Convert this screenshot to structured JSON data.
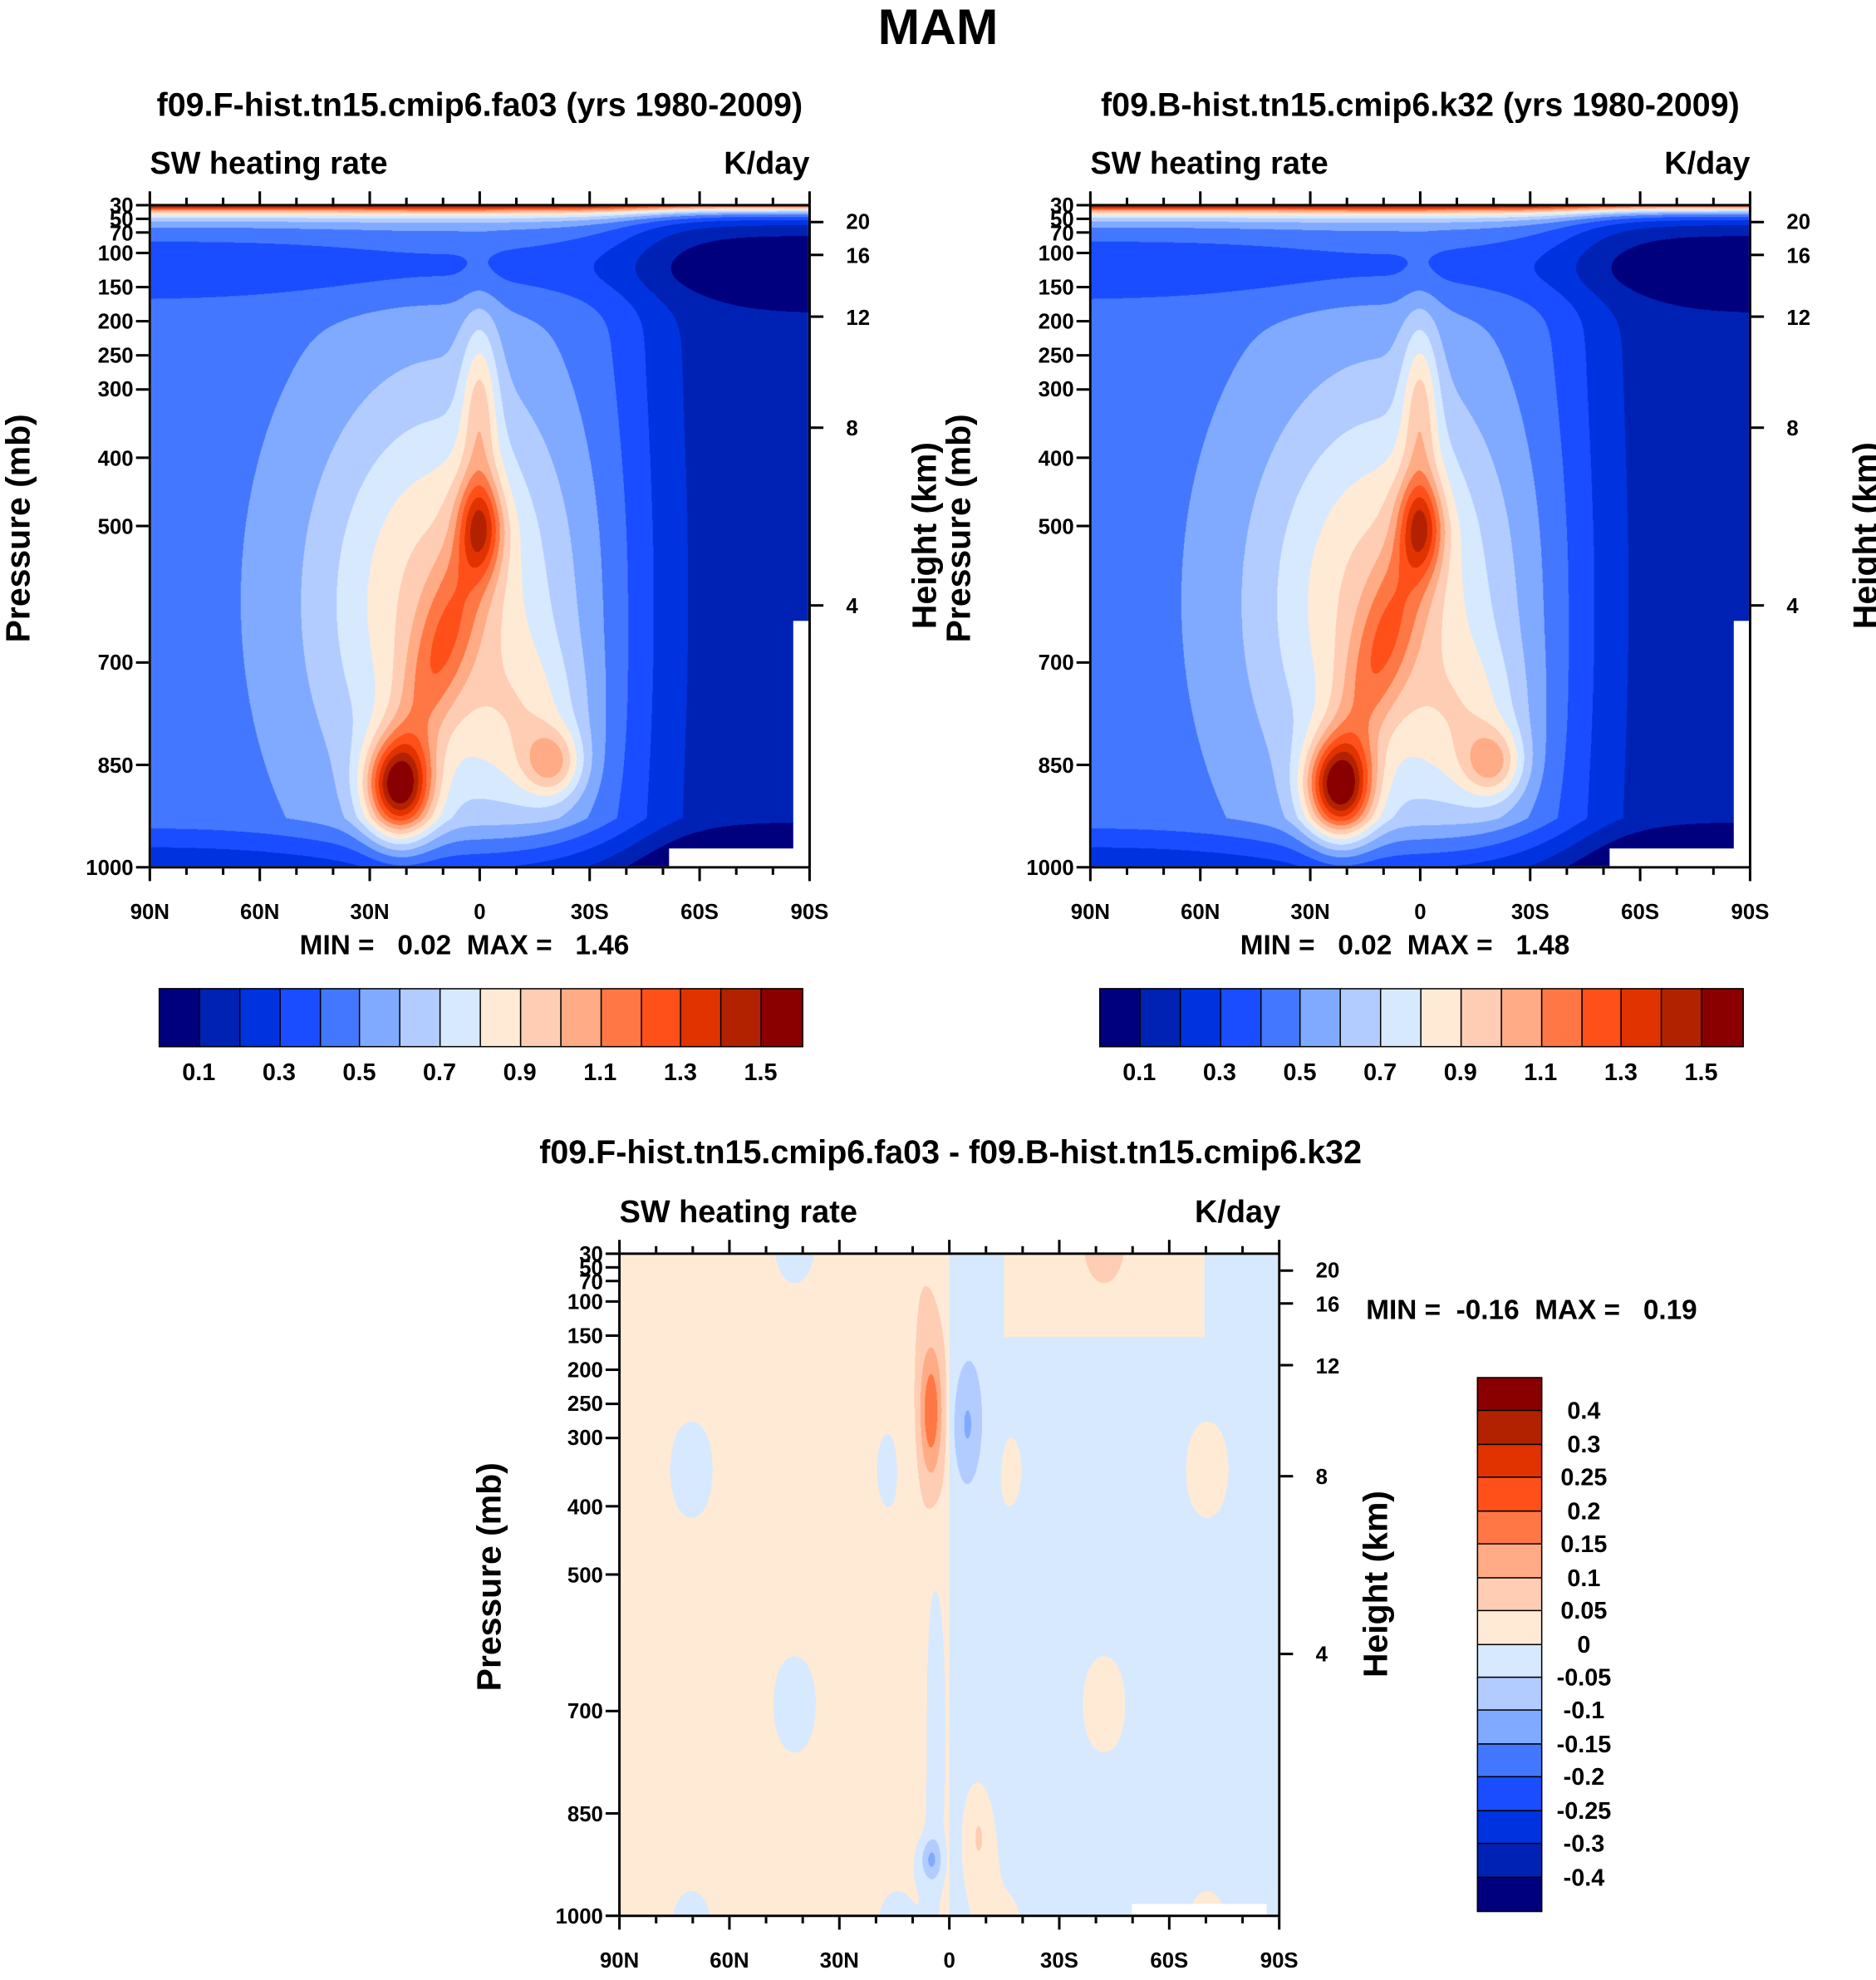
{
  "title": "MAM",
  "chart_data": [
    {
      "type": "heatmap",
      "subtype": "filled-contour latitude-pressure cross-section",
      "title": "f09.F-hist.tn15.cmip6.fa03 (yrs 1980-2009)",
      "left_label": "SW heating rate",
      "right_label": "K/day",
      "ylabel": "Pressure (mb)",
      "ylabel_right": "Height (km)",
      "xticks": [
        "90N",
        "60N",
        "30N",
        "0",
        "30S",
        "60S",
        "90S"
      ],
      "xtick_values": [
        90,
        60,
        30,
        0,
        -30,
        -60,
        -90
      ],
      "yticks": [
        30,
        50,
        70,
        100,
        150,
        200,
        250,
        300,
        400,
        500,
        700,
        850,
        1000
      ],
      "yticks_right_km": [
        20,
        16,
        12,
        8,
        4
      ],
      "ylim": [
        1000,
        30
      ],
      "xlim": [
        90,
        -90
      ],
      "min_label": "MIN =",
      "min_value": "0.02",
      "max_label": "MAX =",
      "max_value": "1.46",
      "colorbar": {
        "orientation": "horizontal",
        "labels": [
          "0.1",
          "0.3",
          "0.5",
          "0.7",
          "0.9",
          "1.1",
          "1.3",
          "1.5"
        ],
        "levels": [
          0.1,
          0.2,
          0.3,
          0.4,
          0.5,
          0.6,
          0.7,
          0.8,
          0.9,
          1.0,
          1.1,
          1.2,
          1.3,
          1.4,
          1.5
        ],
        "colors": [
          "#00007f",
          "#0022b4",
          "#0033e0",
          "#1a4dff",
          "#4477ff",
          "#80aaff",
          "#b3ccff",
          "#d6e9ff",
          "#ffead6",
          "#ffcdb3",
          "#ffab85",
          "#ff7744",
          "#ff5019",
          "#e03300",
          "#b32200",
          "#8a0000"
        ]
      },
      "features": [
        "max ~1.46 near 20N 900mb",
        "secondary max near 0 500mb",
        "max near 20S 870mb",
        "minimum over southern polar region"
      ]
    },
    {
      "type": "heatmap",
      "subtype": "filled-contour latitude-pressure cross-section",
      "title": "f09.B-hist.tn15.cmip6.k32 (yrs 1980-2009)",
      "left_label": "SW heating rate",
      "right_label": "K/day",
      "ylabel": "Pressure (mb)",
      "ylabel_right": "Height (km)",
      "xticks": [
        "90N",
        "60N",
        "30N",
        "0",
        "30S",
        "60S",
        "90S"
      ],
      "xtick_values": [
        90,
        60,
        30,
        0,
        -30,
        -60,
        -90
      ],
      "yticks": [
        30,
        50,
        70,
        100,
        150,
        200,
        250,
        300,
        400,
        500,
        700,
        850,
        1000
      ],
      "yticks_right_km": [
        20,
        16,
        12,
        8,
        4
      ],
      "ylim": [
        1000,
        30
      ],
      "xlim": [
        90,
        -90
      ],
      "min_label": "MIN =",
      "min_value": "0.02",
      "max_label": "MAX =",
      "max_value": "1.48",
      "colorbar": {
        "orientation": "horizontal",
        "labels": [
          "0.1",
          "0.3",
          "0.5",
          "0.7",
          "0.9",
          "1.1",
          "1.3",
          "1.5"
        ],
        "levels": [
          0.1,
          0.2,
          0.3,
          0.4,
          0.5,
          0.6,
          0.7,
          0.8,
          0.9,
          1.0,
          1.1,
          1.2,
          1.3,
          1.4,
          1.5
        ],
        "colors": [
          "#00007f",
          "#0022b4",
          "#0033e0",
          "#1a4dff",
          "#4477ff",
          "#80aaff",
          "#b3ccff",
          "#d6e9ff",
          "#ffead6",
          "#ffcdb3",
          "#ffab85",
          "#ff7744",
          "#ff5019",
          "#e03300",
          "#b32200",
          "#8a0000"
        ]
      }
    },
    {
      "type": "heatmap",
      "subtype": "filled-contour difference",
      "title": "f09.F-hist.tn15.cmip6.fa03 - f09.B-hist.tn15.cmip6.k32",
      "left_label": "SW heating rate",
      "right_label": "K/day",
      "ylabel": "Pressure (mb)",
      "ylabel_right": "Height (km)",
      "xticks": [
        "90N",
        "60N",
        "30N",
        "0",
        "30S",
        "60S",
        "90S"
      ],
      "xtick_values": [
        90,
        60,
        30,
        0,
        -30,
        -60,
        -90
      ],
      "yticks": [
        30,
        50,
        70,
        100,
        150,
        200,
        250,
        300,
        400,
        500,
        700,
        850,
        1000
      ],
      "yticks_right_km": [
        20,
        16,
        12,
        8,
        4
      ],
      "ylim": [
        1000,
        30
      ],
      "xlim": [
        90,
        -90
      ],
      "min_label": "MIN =",
      "min_value": "-0.16",
      "max_label": "MAX =",
      "max_value": "0.19",
      "colorbar": {
        "orientation": "vertical",
        "labels": [
          "0.4",
          "0.3",
          "0.25",
          "0.2",
          "0.15",
          "0.1",
          "0.05",
          "0",
          "-0.05",
          "-0.1",
          "-0.15",
          "-0.2",
          "-0.25",
          "-0.3",
          "-0.4"
        ],
        "levels": [
          -0.4,
          -0.3,
          -0.25,
          -0.2,
          -0.15,
          -0.1,
          -0.05,
          0,
          0.05,
          0.1,
          0.15,
          0.2,
          0.25,
          0.3,
          0.4
        ],
        "colors": [
          "#00007f",
          "#0022b4",
          "#0033e0",
          "#1a4dff",
          "#4477ff",
          "#80aaff",
          "#b3ccff",
          "#d6e9ff",
          "#ffead6",
          "#ffcdb3",
          "#ffab85",
          "#ff7744",
          "#ff5019",
          "#e03300",
          "#b32200",
          "#8a0000"
        ]
      },
      "features": [
        "positive max ~0.19 near 5N 250mb",
        "negative near 5S 250mb",
        "negative min ~-0.16 near 5N 900mb"
      ]
    }
  ]
}
